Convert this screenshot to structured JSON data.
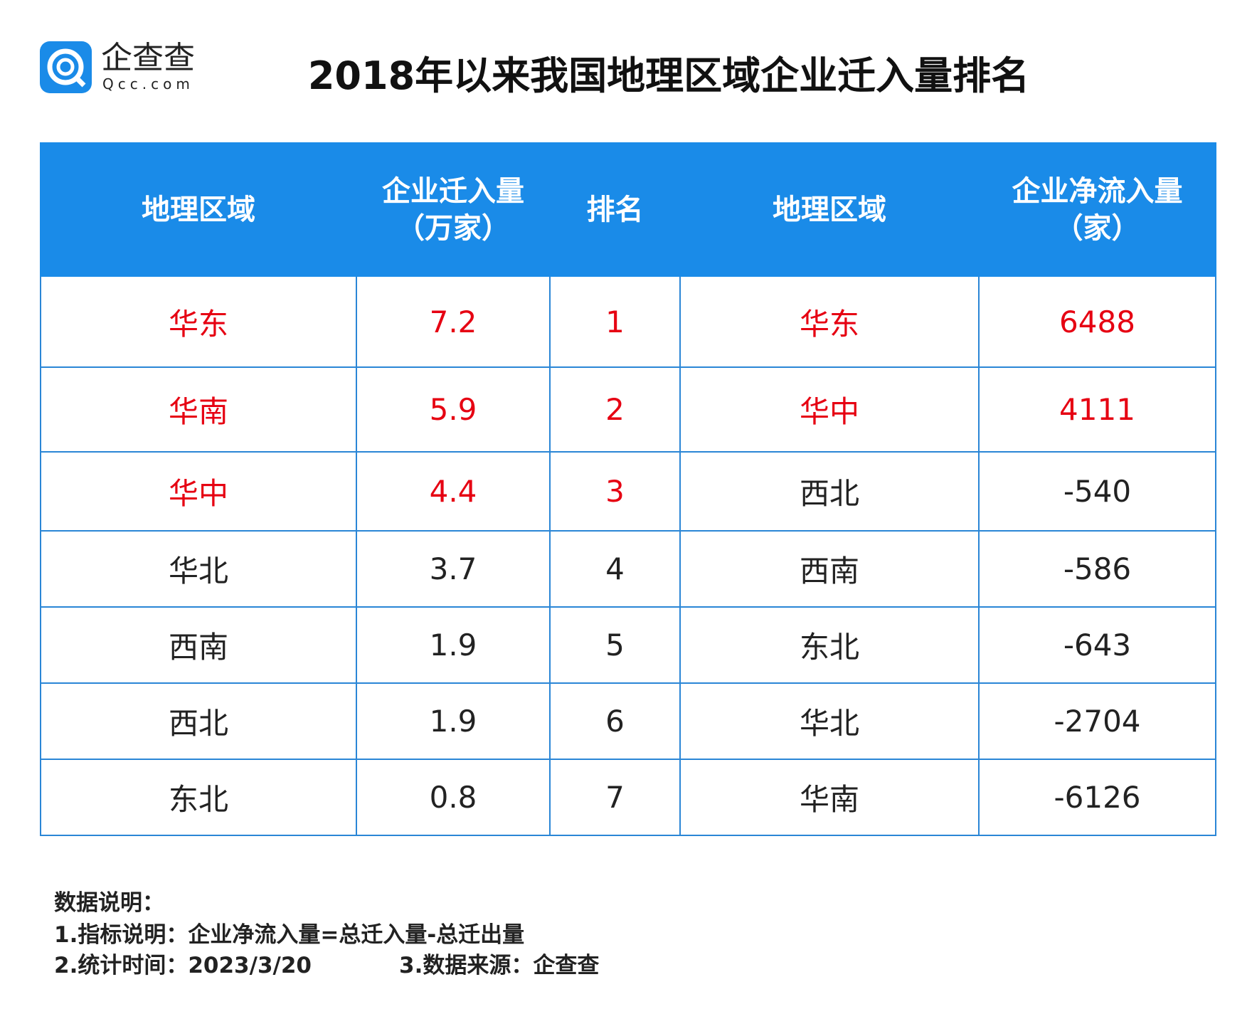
{
  "header": {
    "logo_name": "企查查",
    "logo_url": "Qcc.com",
    "title": "2018年以来我国地理区域企业迁入量排名"
  },
  "table": {
    "columns": [
      [
        "地理区域"
      ],
      [
        "企业迁入量",
        "（万家）"
      ],
      [
        "排名"
      ],
      [
        "地理区域"
      ],
      [
        "企业净流入量",
        "（家）"
      ]
    ],
    "rows": [
      [
        "华东",
        "7.2",
        "1",
        "华东",
        "6488"
      ],
      [
        "华南",
        "5.9",
        "2",
        "华中",
        "4111"
      ],
      [
        "华中",
        "4.4",
        "3",
        "西北",
        "-540"
      ],
      [
        "华北",
        "3.7",
        "4",
        "西南",
        "-586"
      ],
      [
        "西南",
        "1.9",
        "5",
        "东北",
        "-643"
      ],
      [
        "西北",
        "1.9",
        "6",
        "华北",
        "-2704"
      ],
      [
        "东北",
        "0.8",
        "7",
        "华南",
        "-6126"
      ]
    ]
  },
  "notes": {
    "heading": "数据说明：",
    "item1": "1.指标说明：企业净流入量=总迁入量-总迁出量",
    "item2": "2.统计时间：2023/3/20",
    "item3": "3.数据来源：企查查"
  }
}
